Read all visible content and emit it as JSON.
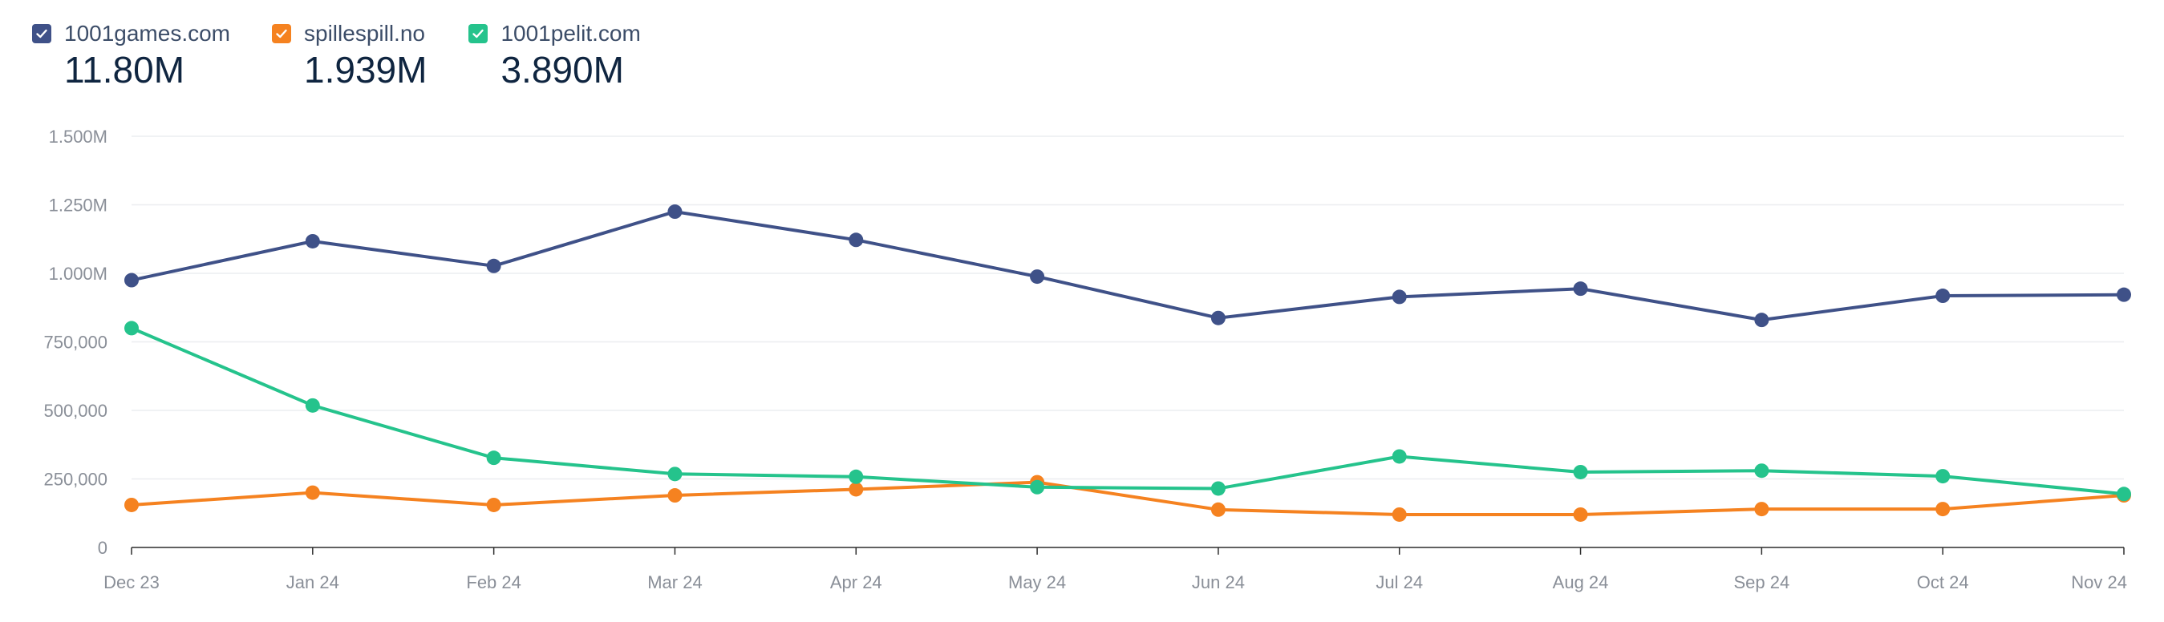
{
  "legend": [
    {
      "name": "1001games.com",
      "total": "11.80M",
      "color": "#3f5188",
      "checked": true
    },
    {
      "name": "spillespill.no",
      "total": "1.939M",
      "color": "#f58220",
      "checked": true
    },
    {
      "name": "1001pelit.com",
      "total": "3.890M",
      "color": "#25c38c",
      "checked": true
    }
  ],
  "chart_data": {
    "type": "line",
    "categories": [
      "Dec 23",
      "Jan 24",
      "Feb 24",
      "Mar 24",
      "Apr 24",
      "May 24",
      "Jun 24",
      "Jul 24",
      "Aug 24",
      "Sep 24",
      "Oct 24",
      "Nov 24"
    ],
    "series": [
      {
        "name": "1001games.com",
        "color": "#3f5188",
        "values": [
          975000,
          1117000,
          1027000,
          1225000,
          1122000,
          988000,
          837000,
          914000,
          944000,
          830000,
          918000,
          922000
        ]
      },
      {
        "name": "spillespill.no",
        "color": "#f58220",
        "values": [
          155000,
          200000,
          155000,
          190000,
          212000,
          238000,
          138000,
          120000,
          120000,
          140000,
          140000,
          190000
        ]
      },
      {
        "name": "1001pelit.com",
        "color": "#25c38c",
        "values": [
          800000,
          518000,
          327000,
          268000,
          258000,
          220000,
          215000,
          332000,
          275000,
          280000,
          260000,
          195000
        ]
      }
    ],
    "yticks": [
      0,
      250000,
      500000,
      750000,
      1000000,
      1250000,
      1500000
    ],
    "ytick_labels": [
      "0",
      "250,000",
      "500,000",
      "750,000",
      "1.000M",
      "1.250M",
      "1.500M"
    ],
    "ylim": [
      0,
      1500000
    ],
    "grid": true
  }
}
